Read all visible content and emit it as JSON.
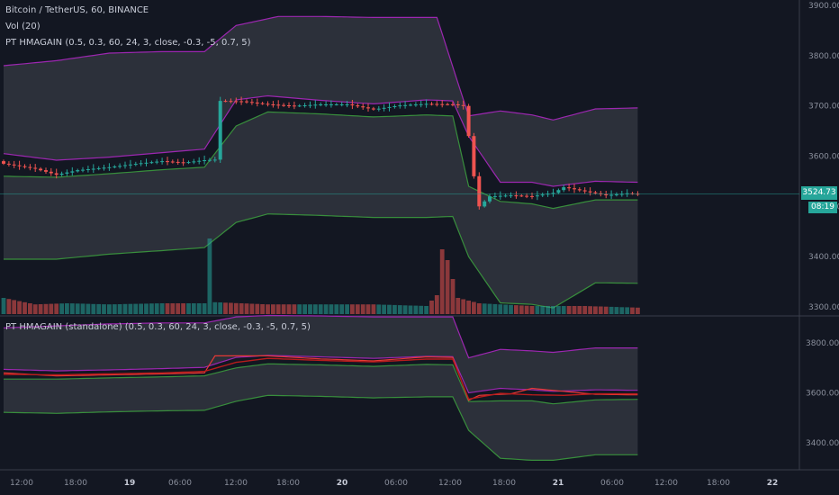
{
  "legend": {
    "symbol": "Bitcoin / TetherUS, 60, BINANCE",
    "volume": "Vol (20)",
    "indicator_main": "PT HMAGAIN (0.5, 0.3, 60, 24, 3, close, -0.3, -5, 0.7, 5)",
    "indicator_sub": "PT HMAGAIN (standalone) (0.5, 0.3, 60, 24, 3, close, -0.3, -5, 0.7, 5)"
  },
  "last_price": "3524.73",
  "countdown": "08:19",
  "colors": {
    "background": "#131722",
    "up": "#26a69a",
    "down": "#ef5350",
    "band_outer": "#9c27b0",
    "band_inner": "#388e3c",
    "signal": "#e53935"
  },
  "chart_data": [
    {
      "type": "candlestick",
      "title": "Bitcoin / TetherUS, 60, BINANCE",
      "ylim": [
        3280,
        3910
      ],
      "y_ticks": [
        "3900.00",
        "3800.00",
        "3700.00",
        "3600.00",
        "3500.00",
        "3400.00",
        "3300.00"
      ],
      "x_ticks": [
        "12:00",
        "18:00",
        "19",
        "06:00",
        "12:00",
        "18:00",
        "20",
        "06:00",
        "12:00",
        "18:00",
        "21",
        "06:00",
        "12:00",
        "18:00",
        "22"
      ],
      "close_anchors": [
        [
          0,
          3585
        ],
        [
          6,
          3575
        ],
        [
          10,
          3563
        ],
        [
          14,
          3572
        ],
        [
          20,
          3578
        ],
        [
          26,
          3586
        ],
        [
          30,
          3590
        ],
        [
          34,
          3587
        ],
        [
          38,
          3592
        ],
        [
          40,
          3593
        ],
        [
          41,
          3710
        ],
        [
          45,
          3709
        ],
        [
          50,
          3703
        ],
        [
          55,
          3700
        ],
        [
          60,
          3703
        ],
        [
          65,
          3703
        ],
        [
          70,
          3693
        ],
        [
          75,
          3701
        ],
        [
          80,
          3704
        ],
        [
          85,
          3703
        ],
        [
          87,
          3700
        ],
        [
          88,
          3640
        ],
        [
          89,
          3560
        ],
        [
          90,
          3500
        ],
        [
          92,
          3520
        ],
        [
          96,
          3522
        ],
        [
          100,
          3520
        ],
        [
          104,
          3527
        ],
        [
          106,
          3538
        ],
        [
          110,
          3530
        ],
        [
          114,
          3522
        ],
        [
          118,
          3526
        ],
        [
          120,
          3524.73
        ]
      ],
      "volume_anchors": [
        [
          0,
          30
        ],
        [
          6,
          18
        ],
        [
          12,
          20
        ],
        [
          20,
          18
        ],
        [
          30,
          20
        ],
        [
          38,
          20
        ],
        [
          39,
          140
        ],
        [
          40,
          22
        ],
        [
          50,
          18
        ],
        [
          60,
          18
        ],
        [
          70,
          18
        ],
        [
          80,
          15
        ],
        [
          82,
          35
        ],
        [
          83,
          120
        ],
        [
          84,
          100
        ],
        [
          86,
          30
        ],
        [
          90,
          20
        ],
        [
          100,
          15
        ],
        [
          110,
          15
        ],
        [
          120,
          12
        ]
      ],
      "bands": {
        "outer_upper_anchors": [
          [
            0,
            3780
          ],
          [
            10,
            3790
          ],
          [
            20,
            3805
          ],
          [
            30,
            3808
          ],
          [
            38,
            3808
          ],
          [
            44,
            3860
          ],
          [
            52,
            3878
          ],
          [
            60,
            3878
          ],
          [
            70,
            3876
          ],
          [
            75,
            3876
          ],
          [
            82,
            3876
          ],
          [
            88,
            3680
          ],
          [
            94,
            3690
          ],
          [
            100,
            3682
          ],
          [
            104,
            3672
          ],
          [
            112,
            3694
          ],
          [
            120,
            3696
          ]
        ],
        "inner_upper_anchors": [
          [
            0,
            3605
          ],
          [
            10,
            3592
          ],
          [
            20,
            3598
          ],
          [
            30,
            3607
          ],
          [
            38,
            3614
          ],
          [
            44,
            3712
          ],
          [
            50,
            3720
          ],
          [
            60,
            3711
          ],
          [
            70,
            3704
          ],
          [
            80,
            3712
          ],
          [
            85,
            3710
          ],
          [
            88,
            3640
          ],
          [
            94,
            3548
          ],
          [
            100,
            3548
          ],
          [
            104,
            3540
          ],
          [
            112,
            3550
          ],
          [
            120,
            3548
          ]
        ],
        "inner_lower_anchors": [
          [
            0,
            3560
          ],
          [
            10,
            3558
          ],
          [
            20,
            3565
          ],
          [
            30,
            3573
          ],
          [
            38,
            3578
          ],
          [
            44,
            3660
          ],
          [
            50,
            3688
          ],
          [
            60,
            3684
          ],
          [
            70,
            3678
          ],
          [
            80,
            3682
          ],
          [
            85,
            3680
          ],
          [
            88,
            3540
          ],
          [
            94,
            3510
          ],
          [
            100,
            3505
          ],
          [
            104,
            3496
          ],
          [
            112,
            3513
          ],
          [
            120,
            3513
          ]
        ],
        "outer_lower_anchors": [
          [
            0,
            3395
          ],
          [
            10,
            3395
          ],
          [
            20,
            3405
          ],
          [
            30,
            3412
          ],
          [
            38,
            3418
          ],
          [
            44,
            3468
          ],
          [
            50,
            3485
          ],
          [
            60,
            3482
          ],
          [
            70,
            3478
          ],
          [
            80,
            3478
          ],
          [
            85,
            3480
          ],
          [
            88,
            3400
          ],
          [
            94,
            3308
          ],
          [
            100,
            3305
          ],
          [
            104,
            3298
          ],
          [
            112,
            3348
          ],
          [
            120,
            3347
          ]
        ]
      }
    },
    {
      "type": "line",
      "title": "PT HMAGAIN (standalone) (0.5, 0.3, 60, 24, 3, close, -0.3, -5, 0.7, 5)",
      "ylim": [
        3290,
        3900
      ],
      "y_ticks": [
        "3800.0000",
        "3600.0000",
        "3400.0000"
      ],
      "series": [
        {
          "role": "signal",
          "anchors": [
            [
              0,
              3680
            ],
            [
              10,
              3668
            ],
            [
              20,
              3672
            ],
            [
              30,
              3676
            ],
            [
              38,
              3680
            ],
            [
              40,
              3748
            ],
            [
              50,
              3748
            ],
            [
              60,
              3736
            ],
            [
              70,
              3728
            ],
            [
              80,
              3744
            ],
            [
              85,
              3742
            ],
            [
              88,
              3570
            ],
            [
              90,
              3590
            ],
            [
              96,
              3596
            ],
            [
              100,
              3618
            ],
            [
              106,
              3606
            ],
            [
              112,
              3594
            ],
            [
              120,
              3592
            ]
          ]
        },
        {
          "role": "fast",
          "anchors": [
            [
              0,
              3674
            ],
            [
              10,
              3672
            ],
            [
              20,
              3676
            ],
            [
              30,
              3680
            ],
            [
              38,
              3686
            ],
            [
              44,
              3722
            ],
            [
              50,
              3738
            ],
            [
              60,
              3730
            ],
            [
              70,
              3724
            ],
            [
              80,
              3735
            ],
            [
              85,
              3735
            ],
            [
              88,
              3575
            ],
            [
              94,
              3598
            ],
            [
              100,
              3592
            ],
            [
              106,
              3590
            ],
            [
              112,
              3596
            ],
            [
              120,
              3596
            ]
          ]
        }
      ],
      "bands": {
        "outer_upper_anchors": [
          [
            0,
            3860
          ],
          [
            10,
            3868
          ],
          [
            20,
            3876
          ],
          [
            30,
            3880
          ],
          [
            38,
            3880
          ],
          [
            44,
            3904
          ],
          [
            50,
            3910
          ],
          [
            60,
            3908
          ],
          [
            70,
            3904
          ],
          [
            85,
            3904
          ],
          [
            88,
            3740
          ],
          [
            94,
            3774
          ],
          [
            100,
            3768
          ],
          [
            104,
            3762
          ],
          [
            112,
            3780
          ],
          [
            120,
            3780
          ]
        ],
        "inner_upper_anchors": [
          [
            0,
            3694
          ],
          [
            10,
            3688
          ],
          [
            20,
            3692
          ],
          [
            30,
            3697
          ],
          [
            38,
            3702
          ],
          [
            44,
            3742
          ],
          [
            50,
            3750
          ],
          [
            60,
            3744
          ],
          [
            70,
            3738
          ],
          [
            80,
            3746
          ],
          [
            85,
            3745
          ],
          [
            88,
            3600
          ],
          [
            94,
            3618
          ],
          [
            100,
            3612
          ],
          [
            104,
            3606
          ],
          [
            112,
            3612
          ],
          [
            120,
            3610
          ]
        ],
        "inner_lower_anchors": [
          [
            0,
            3655
          ],
          [
            10,
            3655
          ],
          [
            20,
            3660
          ],
          [
            30,
            3664
          ],
          [
            38,
            3668
          ],
          [
            44,
            3700
          ],
          [
            50,
            3716
          ],
          [
            60,
            3712
          ],
          [
            70,
            3706
          ],
          [
            80,
            3714
          ],
          [
            85,
            3712
          ],
          [
            88,
            3565
          ],
          [
            94,
            3568
          ],
          [
            100,
            3568
          ],
          [
            104,
            3556
          ],
          [
            112,
            3572
          ],
          [
            120,
            3574
          ]
        ],
        "outer_lower_anchors": [
          [
            0,
            3522
          ],
          [
            10,
            3518
          ],
          [
            20,
            3524
          ],
          [
            30,
            3528
          ],
          [
            38,
            3530
          ],
          [
            44,
            3566
          ],
          [
            50,
            3590
          ],
          [
            60,
            3586
          ],
          [
            70,
            3580
          ],
          [
            80,
            3584
          ],
          [
            85,
            3584
          ],
          [
            88,
            3450
          ],
          [
            94,
            3338
          ],
          [
            100,
            3330
          ],
          [
            104,
            3330
          ],
          [
            112,
            3352
          ],
          [
            120,
            3352
          ]
        ]
      }
    }
  ]
}
